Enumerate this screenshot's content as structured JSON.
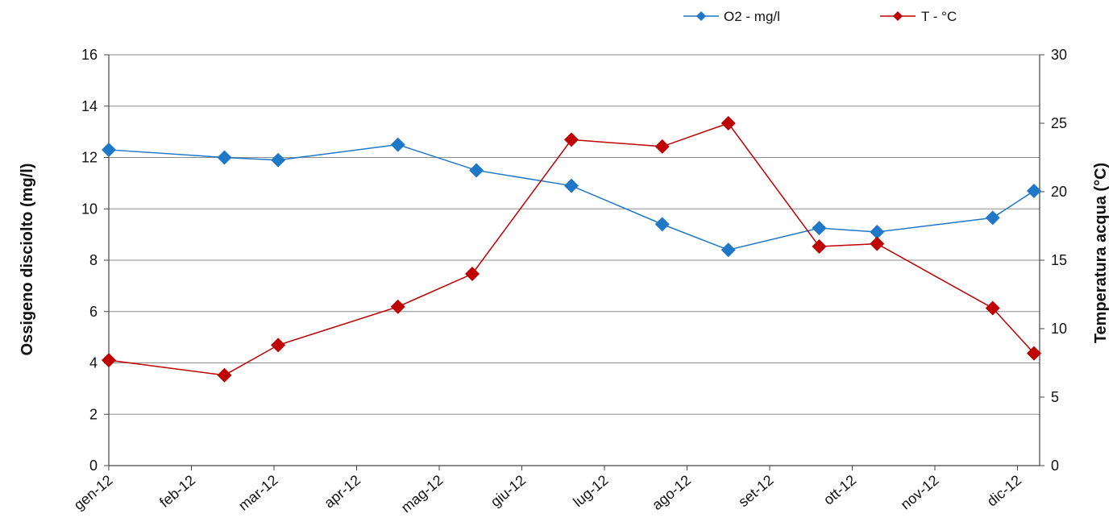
{
  "chart_data": {
    "type": "line",
    "title": "",
    "categories": [
      "gen-12",
      "feb-12",
      "mar-12",
      "apr-12",
      "mag-12",
      "giu-12",
      "lug-12",
      "ago-12",
      "set-12",
      "ott-12",
      "nov-12",
      "dic-12"
    ],
    "ylabel": "Ossigeno disciolto (mg/l)",
    "y2label": "Temperatura acqua (°C)",
    "ylim": [
      0,
      16
    ],
    "y_ticks": [
      0,
      2,
      4,
      6,
      8,
      10,
      12,
      14,
      16
    ],
    "y2lim": [
      0,
      30
    ],
    "y2_ticks": [
      0,
      5,
      10,
      15,
      20,
      25,
      30
    ],
    "grid": true,
    "legend_position": "top-right",
    "series": [
      {
        "name": "O2 - mg/l",
        "axis": "left",
        "color": "#1f77c8",
        "marker": "diamond",
        "x": [
          0,
          1.4,
          2.05,
          3.5,
          4.45,
          5.6,
          6.7,
          7.5,
          8.6,
          9.3,
          10.7,
          11.2
        ],
        "values": [
          12.3,
          12.0,
          11.9,
          12.5,
          11.5,
          10.9,
          9.4,
          8.4,
          9.25,
          9.1,
          9.65,
          10.7
        ]
      },
      {
        "name": "T - °C",
        "axis": "right",
        "color": "#c00000",
        "marker": "diamond",
        "x": [
          0,
          1.4,
          2.05,
          3.5,
          4.4,
          5.6,
          6.7,
          7.5,
          8.6,
          9.3,
          10.7,
          11.2
        ],
        "values": [
          7.7,
          6.6,
          8.8,
          11.6,
          14.0,
          23.8,
          23.3,
          25.0,
          16.0,
          16.2,
          11.5,
          8.2
        ]
      }
    ]
  }
}
